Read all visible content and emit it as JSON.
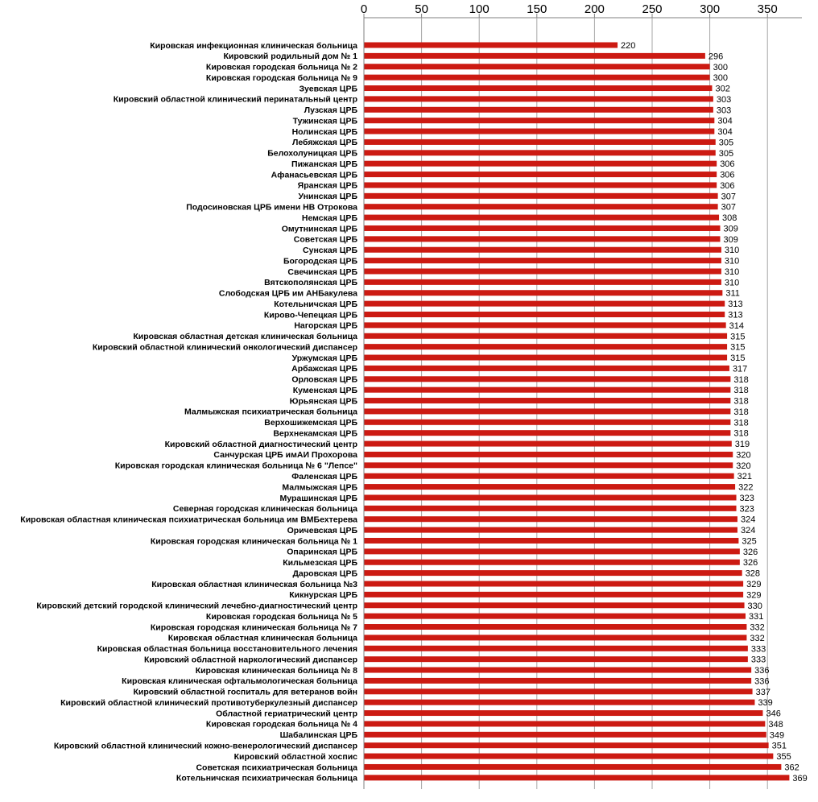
{
  "chart_data": {
    "type": "bar",
    "orientation": "horizontal",
    "title": "",
    "xlabel": "",
    "ylabel": "",
    "xlim": [
      0,
      380
    ],
    "x_ticks": [
      0,
      50,
      100,
      150,
      200,
      250,
      300,
      350
    ],
    "x_axis_position": "top",
    "grid": "vertical",
    "bar_color": "#cc1a12",
    "categories": [
      "Кировская инфекционная клиническая больница",
      "Кировский родильный дом № 1",
      "Кировская городская больница № 2",
      "Кировская городская больница № 9",
      "Зуевская ЦРБ",
      "Кировский областной  клинический перинатальный центр",
      "Лузская ЦРБ",
      "Тужинская ЦРБ",
      "Нолинская ЦРБ",
      "Лебяжская ЦРБ",
      "Белохолуницкая ЦРБ",
      "Пижанская ЦРБ",
      "Афанасьевская ЦРБ",
      "Яранская ЦРБ",
      "Унинская ЦРБ",
      "Подосиновская ЦРБ имени НВ Отрокова",
      "Немская ЦРБ",
      "Омутнинская ЦРБ",
      "Советская ЦРБ",
      "Сунская ЦРБ",
      "Богородская ЦРБ",
      "Свечинская ЦРБ",
      "Вятскополянская ЦРБ",
      "Слободская ЦРБ им АНБакулева",
      "Котельничская ЦРБ",
      "Кирово-Чепецкая ЦРБ",
      "Нагорская ЦРБ",
      "Кировская областная детская клиническая больница",
      "Кировский областной клинический онкологический диспансер",
      "Уржумская ЦРБ",
      "Арбажская ЦРБ",
      "Орловская ЦРБ",
      "Куменская ЦРБ",
      "Юрьянская ЦРБ",
      "Малмыжская психиатрическая больница",
      "Верхошижемская ЦРБ",
      "Верхнекамская ЦРБ",
      "Кировский областной диагностический центр",
      "Санчурская ЦРБ имАИ Прохорова",
      "Кировская городская клиническая больница № 6 \"Лепсе\"",
      "Фаленская ЦРБ",
      "Малмыжская ЦРБ",
      "Мурашинская ЦРБ",
      "Северная городская клиническая больница",
      "Кировская областная клиническая психиатрическая больница им ВМБехтерева",
      "Оричевская ЦРБ",
      "Кировская городская клиническая больница № 1",
      "Опаринская ЦРБ",
      "Кильмезская ЦРБ",
      "Даровская ЦРБ",
      "Кировская областная клиническая больница №3",
      "Кикнурская ЦРБ",
      "Кировский детский городской клинический лечебно-диагностический центр",
      "Кировская городская больница № 5",
      "Кировская городская клиническая больница № 7",
      "Кировская областная клиническая больница",
      "Кировская областная больница восстановительного лечения",
      "Кировский областной наркологический диспансер",
      "Кировская клиническая больница № 8",
      "Кировская клиническая офтальмологическая больница",
      "Кировский областной госпиталь для ветеранов войн",
      "Кировский областной клинический противотуберкулезный диспансер",
      "Областной гериатрический центр",
      "Кировская городская больница № 4",
      "Шабалинская ЦРБ",
      "Кировский областной  клинический кожно-венерологический диспансер",
      "Кировский областной хоспис",
      "Советская психиатрическая больница",
      "Котельничская психиатрическая больница"
    ],
    "values": [
      220,
      296,
      300,
      300,
      302,
      303,
      303,
      304,
      304,
      305,
      305,
      306,
      306,
      306,
      307,
      307,
      308,
      309,
      309,
      310,
      310,
      310,
      310,
      311,
      313,
      313,
      314,
      315,
      315,
      315,
      317,
      318,
      318,
      318,
      318,
      318,
      318,
      319,
      320,
      320,
      321,
      322,
      323,
      323,
      324,
      324,
      325,
      326,
      326,
      328,
      329,
      329,
      330,
      331,
      332,
      332,
      333,
      333,
      336,
      336,
      337,
      339,
      346,
      348,
      349,
      351,
      355,
      362,
      369
    ]
  }
}
